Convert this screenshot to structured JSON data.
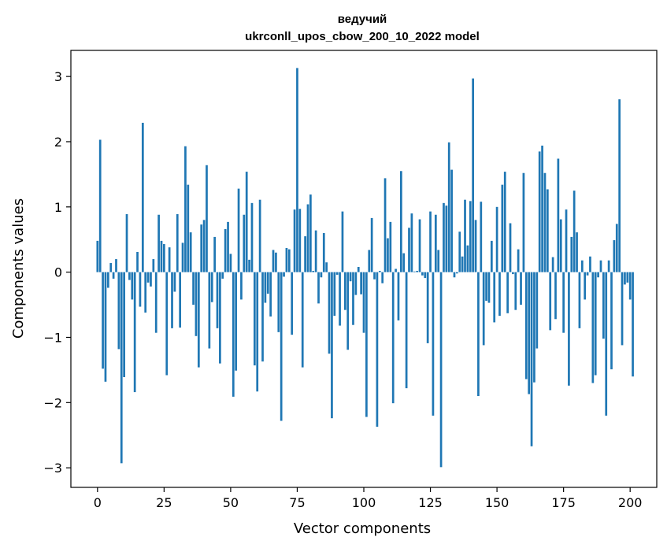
{
  "chart_data": {
    "type": "bar",
    "title": "ведучий",
    "subtitle": "ukrconll_upos_cbow_200_10_2022 model",
    "xlabel": "Vector components",
    "ylabel": "Components values",
    "xlim": [
      -10,
      210
    ],
    "ylim": [
      -3.3,
      3.4
    ],
    "xticks": [
      0,
      25,
      50,
      75,
      100,
      125,
      150,
      175,
      200
    ],
    "yticks": [
      -3,
      -2,
      -1,
      0,
      1,
      2,
      3
    ],
    "ytick_labels": [
      "−3",
      "−2",
      "−1",
      "0",
      "1",
      "2",
      "3"
    ],
    "grid": false,
    "bar_color": "#1f77b4",
    "series": [
      {
        "values": [
          0.48,
          2.03,
          -1.48,
          -1.68,
          -0.24,
          0.14,
          -0.1,
          0.2,
          -1.18,
          -2.93,
          -1.61,
          0.89,
          -0.12,
          -0.42,
          -1.84,
          0.31,
          -0.53,
          2.29,
          -0.62,
          -0.16,
          -0.22,
          0.2,
          -0.93,
          0.88,
          0.48,
          0.43,
          -1.58,
          0.38,
          -0.86,
          -0.3,
          0.89,
          -0.85,
          0.45,
          1.93,
          1.34,
          0.61,
          -0.5,
          -0.98,
          -1.46,
          0.73,
          0.8,
          1.64,
          -1.17,
          -0.46,
          0.54,
          -0.86,
          -1.4,
          -0.1,
          0.66,
          0.77,
          0.28,
          -1.91,
          -1.51,
          1.28,
          -0.42,
          0.88,
          1.54,
          0.19,
          1.06,
          -1.43,
          -1.83,
          1.11,
          -1.37,
          -0.47,
          -0.33,
          -0.68,
          0.34,
          0.3,
          -0.92,
          -2.28,
          -0.07,
          0.37,
          0.35,
          -0.96,
          0.96,
          3.13,
          0.97,
          -1.46,
          0.55,
          1.04,
          1.19,
          0.02,
          0.64,
          -0.48,
          -0.08,
          0.6,
          0.15,
          -1.25,
          -2.24,
          -0.67,
          -0.04,
          -0.82,
          0.93,
          -0.58,
          -1.19,
          -0.14,
          -0.81,
          -0.35,
          0.08,
          -0.34,
          -0.93,
          -2.22,
          0.34,
          0.83,
          -0.11,
          -2.37,
          0.02,
          -0.17,
          1.44,
          0.52,
          0.77,
          -2.01,
          0.05,
          -0.74,
          1.55,
          0.29,
          -1.78,
          0.68,
          0.9,
          0.01,
          0.02,
          0.81,
          -0.05,
          -0.09,
          -1.09,
          0.93,
          -2.2,
          0.88,
          0.34,
          -2.99,
          1.06,
          1.02,
          1.99,
          1.57,
          -0.08,
          -0.02,
          0.62,
          0.24,
          1.11,
          0.41,
          1.09,
          2.97,
          0.8,
          -1.9,
          1.08,
          -1.12,
          -0.44,
          -0.47,
          0.48,
          -0.77,
          1.0,
          -0.67,
          1.34,
          1.54,
          -0.63,
          0.75,
          -0.03,
          -0.58,
          0.35,
          -0.5,
          1.52,
          -1.64,
          -1.87,
          -2.67,
          -1.69,
          -1.17,
          1.85,
          1.94,
          1.52,
          1.27,
          -0.89,
          0.23,
          -0.72,
          1.74,
          0.81,
          -0.93,
          0.96,
          -1.74,
          0.54,
          1.25,
          0.61,
          -0.86,
          0.18,
          -0.42,
          -0.05,
          0.24,
          -1.7,
          -1.58,
          -0.08,
          0.18,
          -1.02,
          -2.2,
          0.18,
          -1.49,
          0.49,
          0.74,
          2.65,
          -1.12,
          -0.19,
          -0.16,
          -0.42,
          -1.6
        ]
      }
    ]
  }
}
